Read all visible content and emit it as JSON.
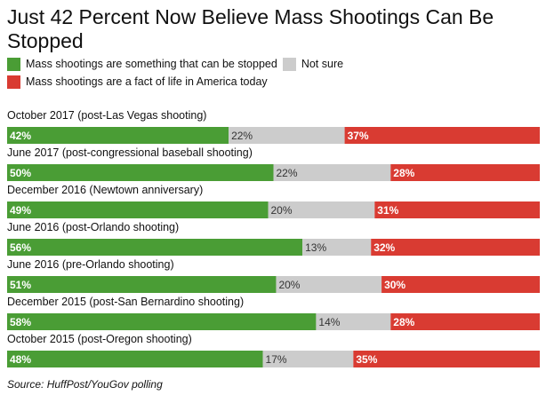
{
  "colors": {
    "stopped": "#4a9d35",
    "not_sure": "#cccccc",
    "fact_of_life": "#d93b32",
    "text": "#111111"
  },
  "chart_data": {
    "type": "bar",
    "stacked": true,
    "orientation": "horizontal",
    "title": "Just 42 Percent Now Believe Mass Shootings Can Be Stopped",
    "legend": "top-left",
    "xlim": [
      0,
      100
    ],
    "categories": [
      "October 2017 (post-Las Vegas shooting)",
      "June 2017 (post-congressional baseball shooting)",
      "December 2016 (Newtown anniversary)",
      "June 2016 (post-Orlando shooting)",
      "June 2016 (pre-Orlando shooting)",
      "December 2015 (post-San Bernardino shooting)",
      "October 2015 (post-Oregon shooting)"
    ],
    "series": [
      {
        "name": "Mass shootings are something that can be stopped",
        "values": [
          42,
          50,
          49,
          56,
          51,
          58,
          48
        ]
      },
      {
        "name": "Not sure",
        "values": [
          22,
          22,
          20,
          13,
          20,
          14,
          17
        ]
      },
      {
        "name": "Mass shootings are a fact of life in America today",
        "values": [
          37,
          28,
          31,
          32,
          30,
          28,
          35
        ]
      }
    ],
    "source": "Source: HuffPost/YouGov polling"
  }
}
